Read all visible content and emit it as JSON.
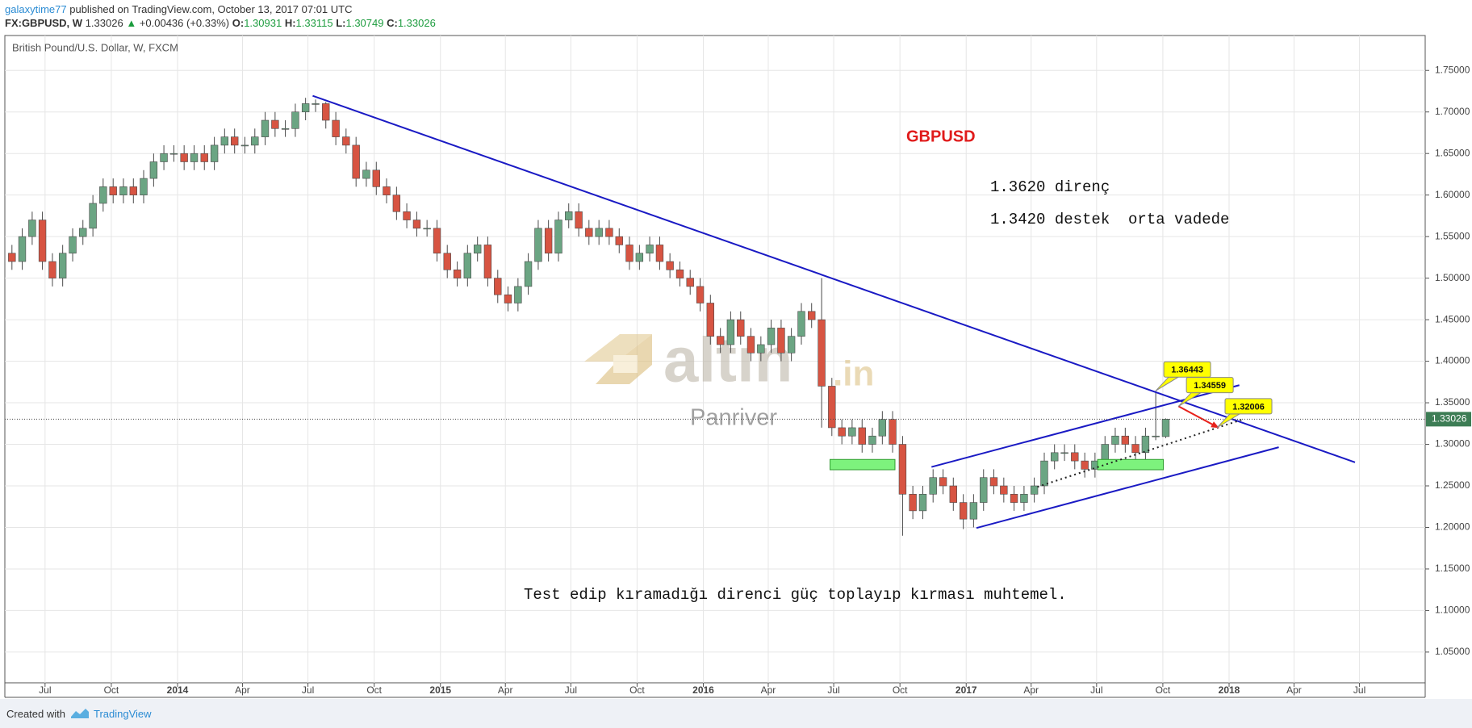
{
  "header": {
    "user": "galaxytime77",
    "published": "published on TradingView.com, October 13, 2017 07:01 UTC",
    "symbol": "FX:GBPUSD, W",
    "price": "1.33026",
    "change": "+0.00436 (+0.33%)",
    "o_label": "O:",
    "o": "1.30931",
    "h_label": "H:",
    "h": "1.33115",
    "l_label": "L:",
    "l": "1.30749",
    "c_label": "C:",
    "c": "1.33026"
  },
  "footer": {
    "created": "Created with",
    "brand": "TradingView"
  },
  "chart_data": {
    "type": "candlestick",
    "title": "British Pound/U.S. Dollar, W, FXCM",
    "up_color": "#6ba583",
    "down_color": "#d75442",
    "wick_color": "#4a4a4a",
    "grid": true,
    "xlim": [
      2013.343,
      2018.746
    ],
    "ylim": [
      1.013,
      1.792
    ],
    "xticks": [
      {
        "value": 2013.496,
        "label": "Jul"
      },
      {
        "value": 2013.748,
        "label": "Oct"
      },
      2014,
      {
        "value": 2014.247,
        "label": "Apr"
      },
      {
        "value": 2014.496,
        "label": "Jul"
      },
      {
        "value": 2014.748,
        "label": "Oct"
      },
      2015,
      {
        "value": 2015.247,
        "label": "Apr"
      },
      {
        "value": 2015.496,
        "label": "Jul"
      },
      {
        "value": 2015.748,
        "label": "Oct"
      },
      2016,
      {
        "value": 2016.247,
        "label": "Apr"
      },
      {
        "value": 2016.496,
        "label": "Jul"
      },
      {
        "value": 2016.748,
        "label": "Oct"
      },
      2017,
      {
        "value": 2017.247,
        "label": "Apr"
      },
      {
        "value": 2017.496,
        "label": "Jul"
      },
      {
        "value": 2017.748,
        "label": "Oct"
      },
      2018,
      {
        "value": 2018.247,
        "label": "Apr"
      },
      {
        "value": 2018.496,
        "label": "Jul"
      }
    ],
    "yticks": [
      {
        "value": 1.05,
        "label": "1.05000"
      },
      {
        "value": 1.1,
        "label": "1.10000"
      },
      {
        "value": 1.15,
        "label": "1.15000"
      },
      {
        "value": 1.2,
        "label": "1.20000"
      },
      {
        "value": 1.25,
        "label": "1.25000"
      },
      {
        "value": 1.3,
        "label": "1.30000"
      },
      {
        "value": 1.35,
        "label": "1.35000"
      },
      {
        "value": 1.4,
        "label": "1.40000"
      },
      {
        "value": 1.45,
        "label": "1.45000"
      },
      {
        "value": 1.5,
        "label": "1.50000"
      },
      {
        "value": 1.55,
        "label": "1.55000"
      },
      {
        "value": 1.6,
        "label": "1.60000"
      },
      {
        "value": 1.65,
        "label": "1.65000"
      },
      {
        "value": 1.7,
        "label": "1.70000"
      },
      {
        "value": 1.75,
        "label": "1.75000"
      }
    ],
    "x": [
      2013.37,
      2013.409,
      2013.447,
      2013.486,
      2013.524,
      2013.563,
      2013.601,
      2013.64,
      2013.678,
      2013.717,
      2013.755,
      2013.794,
      2013.832,
      2013.871,
      2013.909,
      2013.948,
      2013.986,
      2014.025,
      2014.063,
      2014.102,
      2014.14,
      2014.179,
      2014.217,
      2014.256,
      2014.294,
      2014.333,
      2014.371,
      2014.41,
      2014.448,
      2014.487,
      2014.525,
      2014.564,
      2014.602,
      2014.641,
      2014.679,
      2014.718,
      2014.756,
      2014.795,
      2014.833,
      2014.872,
      2014.91,
      2014.949,
      2014.987,
      2015.026,
      2015.064,
      2015.103,
      2015.141,
      2015.18,
      2015.218,
      2015.257,
      2015.295,
      2015.334,
      2015.372,
      2015.411,
      2015.449,
      2015.488,
      2015.526,
      2015.565,
      2015.603,
      2015.642,
      2015.68,
      2015.719,
      2015.757,
      2015.796,
      2015.834,
      2015.873,
      2015.911,
      2015.95,
      2015.988,
      2016.027,
      2016.065,
      2016.104,
      2016.142,
      2016.181,
      2016.219,
      2016.258,
      2016.296,
      2016.335,
      2016.373,
      2016.412,
      2016.45,
      2016.489,
      2016.527,
      2016.566,
      2016.604,
      2016.643,
      2016.681,
      2016.72,
      2016.758,
      2016.797,
      2016.835,
      2016.874,
      2016.912,
      2016.951,
      2016.989,
      2017.028,
      2017.066,
      2017.105,
      2017.143,
      2017.182,
      2017.22,
      2017.259,
      2017.297,
      2017.336,
      2017.374,
      2017.413,
      2017.451,
      2017.49,
      2017.528,
      2017.567,
      2017.605,
      2017.644,
      2017.682,
      2017.721,
      2017.759
    ],
    "open": [
      1.53,
      1.52,
      1.55,
      1.57,
      1.52,
      1.5,
      1.53,
      1.55,
      1.56,
      1.59,
      1.61,
      1.6,
      1.61,
      1.6,
      1.62,
      1.64,
      1.65,
      1.65,
      1.64,
      1.65,
      1.64,
      1.66,
      1.67,
      1.66,
      1.66,
      1.67,
      1.69,
      1.68,
      1.68,
      1.7,
      1.71,
      1.71,
      1.69,
      1.67,
      1.66,
      1.62,
      1.63,
      1.61,
      1.6,
      1.58,
      1.57,
      1.56,
      1.56,
      1.53,
      1.51,
      1.5,
      1.53,
      1.54,
      1.5,
      1.48,
      1.47,
      1.49,
      1.52,
      1.56,
      1.53,
      1.57,
      1.58,
      1.56,
      1.55,
      1.56,
      1.55,
      1.54,
      1.52,
      1.53,
      1.54,
      1.52,
      1.51,
      1.5,
      1.49,
      1.47,
      1.43,
      1.42,
      1.45,
      1.43,
      1.41,
      1.42,
      1.44,
      1.41,
      1.43,
      1.46,
      1.45,
      1.37,
      1.32,
      1.31,
      1.32,
      1.3,
      1.31,
      1.33,
      1.3,
      1.24,
      1.22,
      1.24,
      1.26,
      1.25,
      1.23,
      1.21,
      1.23,
      1.26,
      1.25,
      1.24,
      1.23,
      1.24,
      1.25,
      1.28,
      1.29,
      1.29,
      1.28,
      1.27,
      1.28,
      1.3,
      1.31,
      1.3,
      1.29,
      1.31,
      1.30931
    ],
    "high": [
      1.54,
      1.56,
      1.58,
      1.58,
      1.53,
      1.54,
      1.56,
      1.57,
      1.6,
      1.62,
      1.62,
      1.62,
      1.62,
      1.63,
      1.65,
      1.66,
      1.66,
      1.66,
      1.66,
      1.66,
      1.67,
      1.68,
      1.68,
      1.67,
      1.68,
      1.7,
      1.7,
      1.69,
      1.71,
      1.717,
      1.715,
      1.712,
      1.7,
      1.68,
      1.67,
      1.64,
      1.64,
      1.62,
      1.61,
      1.59,
      1.58,
      1.57,
      1.57,
      1.54,
      1.52,
      1.54,
      1.55,
      1.55,
      1.51,
      1.49,
      1.5,
      1.53,
      1.57,
      1.57,
      1.58,
      1.59,
      1.59,
      1.57,
      1.57,
      1.57,
      1.56,
      1.55,
      1.54,
      1.55,
      1.55,
      1.53,
      1.52,
      1.51,
      1.5,
      1.48,
      1.44,
      1.46,
      1.46,
      1.44,
      1.43,
      1.45,
      1.45,
      1.44,
      1.47,
      1.47,
      1.5,
      1.38,
      1.33,
      1.33,
      1.33,
      1.32,
      1.34,
      1.34,
      1.31,
      1.25,
      1.25,
      1.27,
      1.27,
      1.26,
      1.24,
      1.24,
      1.27,
      1.27,
      1.26,
      1.25,
      1.25,
      1.26,
      1.29,
      1.3,
      1.3,
      1.3,
      1.29,
      1.29,
      1.31,
      1.32,
      1.32,
      1.31,
      1.32,
      1.3644,
      1.33115
    ],
    "low": [
      1.51,
      1.51,
      1.54,
      1.51,
      1.49,
      1.49,
      1.52,
      1.54,
      1.55,
      1.58,
      1.59,
      1.59,
      1.59,
      1.59,
      1.61,
      1.63,
      1.64,
      1.63,
      1.63,
      1.63,
      1.63,
      1.65,
      1.65,
      1.65,
      1.65,
      1.66,
      1.67,
      1.67,
      1.67,
      1.69,
      1.7,
      1.68,
      1.66,
      1.65,
      1.61,
      1.61,
      1.6,
      1.59,
      1.57,
      1.56,
      1.55,
      1.55,
      1.52,
      1.5,
      1.49,
      1.49,
      1.52,
      1.49,
      1.47,
      1.46,
      1.46,
      1.48,
      1.51,
      1.52,
      1.52,
      1.56,
      1.55,
      1.54,
      1.54,
      1.54,
      1.53,
      1.51,
      1.51,
      1.52,
      1.51,
      1.5,
      1.49,
      1.48,
      1.46,
      1.42,
      1.41,
      1.41,
      1.42,
      1.4,
      1.4,
      1.41,
      1.4,
      1.4,
      1.42,
      1.44,
      1.32,
      1.31,
      1.3,
      1.3,
      1.29,
      1.29,
      1.3,
      1.29,
      1.19,
      1.21,
      1.21,
      1.23,
      1.24,
      1.22,
      1.198,
      1.2,
      1.22,
      1.24,
      1.23,
      1.22,
      1.22,
      1.23,
      1.24,
      1.27,
      1.28,
      1.27,
      1.26,
      1.26,
      1.27,
      1.29,
      1.29,
      1.28,
      1.28,
      1.305,
      1.30749
    ],
    "close": [
      1.52,
      1.55,
      1.57,
      1.52,
      1.5,
      1.53,
      1.55,
      1.56,
      1.59,
      1.61,
      1.6,
      1.61,
      1.6,
      1.62,
      1.64,
      1.65,
      1.65,
      1.64,
      1.65,
      1.64,
      1.66,
      1.67,
      1.66,
      1.66,
      1.67,
      1.69,
      1.68,
      1.68,
      1.7,
      1.71,
      1.71,
      1.69,
      1.67,
      1.66,
      1.62,
      1.63,
      1.61,
      1.6,
      1.58,
      1.57,
      1.56,
      1.56,
      1.53,
      1.51,
      1.5,
      1.53,
      1.54,
      1.5,
      1.48,
      1.47,
      1.49,
      1.52,
      1.56,
      1.53,
      1.57,
      1.58,
      1.56,
      1.55,
      1.56,
      1.55,
      1.54,
      1.52,
      1.53,
      1.54,
      1.52,
      1.51,
      1.5,
      1.49,
      1.47,
      1.43,
      1.42,
      1.45,
      1.43,
      1.41,
      1.42,
      1.44,
      1.41,
      1.43,
      1.46,
      1.45,
      1.37,
      1.32,
      1.31,
      1.32,
      1.3,
      1.31,
      1.33,
      1.3,
      1.24,
      1.22,
      1.24,
      1.26,
      1.25,
      1.23,
      1.21,
      1.23,
      1.26,
      1.25,
      1.24,
      1.23,
      1.24,
      1.25,
      1.28,
      1.29,
      1.29,
      1.28,
      1.27,
      1.28,
      1.3,
      1.31,
      1.3,
      1.29,
      1.31,
      1.31,
      1.33026
    ],
    "last_price": 1.33026,
    "last_price_color": "#3d7d55",
    "trend_lines": [
      {
        "x": [
          2014.514,
          2018.479
        ],
        "y": [
          1.7195,
          1.2784
        ],
        "color": "#1a1ac4"
      },
      {
        "x": [
          2016.868,
          2018.039
        ],
        "y": [
          1.2728,
          1.3712
        ],
        "color": "#1a1ac4"
      },
      {
        "x": [
          2017.039,
          2018.189
        ],
        "y": [
          1.1993,
          1.2965
        ],
        "color": "#1a1ac4"
      }
    ],
    "dotted_lines": [
      {
        "x": [
          2017.271,
          2018.057
        ],
        "y": [
          1.2488,
          1.3305
        ],
        "color": "#222222"
      }
    ],
    "arrows": [
      {
        "x": [
          2017.807,
          2017.96
        ],
        "y": [
          1.3459,
          1.32
        ],
        "color": "#e8211b"
      }
    ],
    "zones": [
      {
        "x": [
          2016.482,
          2016.729
        ],
        "y": [
          1.2694,
          1.2818
        ],
        "color": "#7df27d"
      },
      {
        "x": [
          2017.5,
          2017.75
        ],
        "y": [
          1.2694,
          1.2818
        ],
        "color": "#7df27d"
      }
    ],
    "callouts": [
      {
        "x": 2017.721,
        "value": 1.36443
      },
      {
        "x": 2017.807,
        "value": 1.34559
      },
      {
        "x": 2017.954,
        "value": 1.32006
      }
    ],
    "annotations": {
      "symbol": "GBPUSD",
      "resistance": "1.3620 direnç",
      "support": "1.3420 destek  orta vadede",
      "note": "Test edip kıramadığı direnci güç toplayıp kırması muhtemel."
    },
    "watermark": {
      "brand": "altın",
      "domain": ".in",
      "author": "Panriver"
    }
  }
}
